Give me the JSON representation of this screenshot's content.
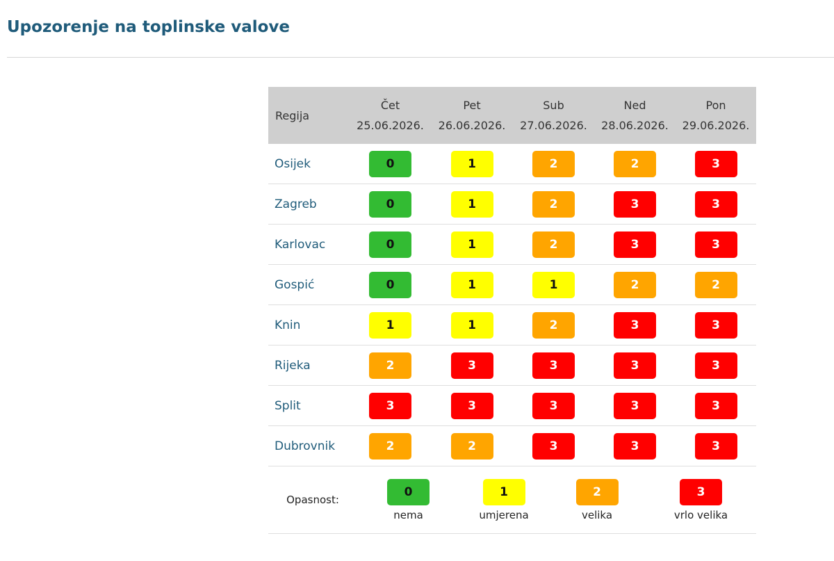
{
  "page": {
    "title": "Upozorenje na toplinske valove"
  },
  "table": {
    "region_header": "Regija",
    "days": [
      {
        "day": "Čet",
        "date": "25.06.2026."
      },
      {
        "day": "Pet",
        "date": "26.06.2026."
      },
      {
        "day": "Sub",
        "date": "27.06.2026."
      },
      {
        "day": "Ned",
        "date": "28.06.2026."
      },
      {
        "day": "Pon",
        "date": "29.06.2026."
      }
    ],
    "rows": [
      {
        "region": "Osijek",
        "levels": [
          "0",
          "1",
          "2",
          "2",
          "3"
        ]
      },
      {
        "region": "Zagreb",
        "levels": [
          "0",
          "1",
          "2",
          "3",
          "3"
        ]
      },
      {
        "region": "Karlovac",
        "levels": [
          "0",
          "1",
          "2",
          "3",
          "3"
        ]
      },
      {
        "region": "Gospić",
        "levels": [
          "0",
          "1",
          "1",
          "2",
          "2"
        ]
      },
      {
        "region": "Knin",
        "levels": [
          "1",
          "1",
          "2",
          "3",
          "3"
        ]
      },
      {
        "region": "Rijeka",
        "levels": [
          "2",
          "3",
          "3",
          "3",
          "3"
        ]
      },
      {
        "region": "Split",
        "levels": [
          "3",
          "3",
          "3",
          "3",
          "3"
        ]
      },
      {
        "region": "Dubrovnik",
        "levels": [
          "2",
          "2",
          "3",
          "3",
          "3"
        ]
      }
    ]
  },
  "legend": {
    "label": "Opasnost:",
    "items": [
      {
        "level": "0",
        "text": "nema"
      },
      {
        "level": "1",
        "text": "umjerena"
      },
      {
        "level": "2",
        "text": "velika"
      },
      {
        "level": "3",
        "text": "vrlo velika"
      }
    ]
  },
  "colors": {
    "level_0": "#33bb33",
    "level_1": "#ffff00",
    "level_2": "#ffa500",
    "level_3": "#ff0000",
    "title": "#1f5b7a"
  }
}
